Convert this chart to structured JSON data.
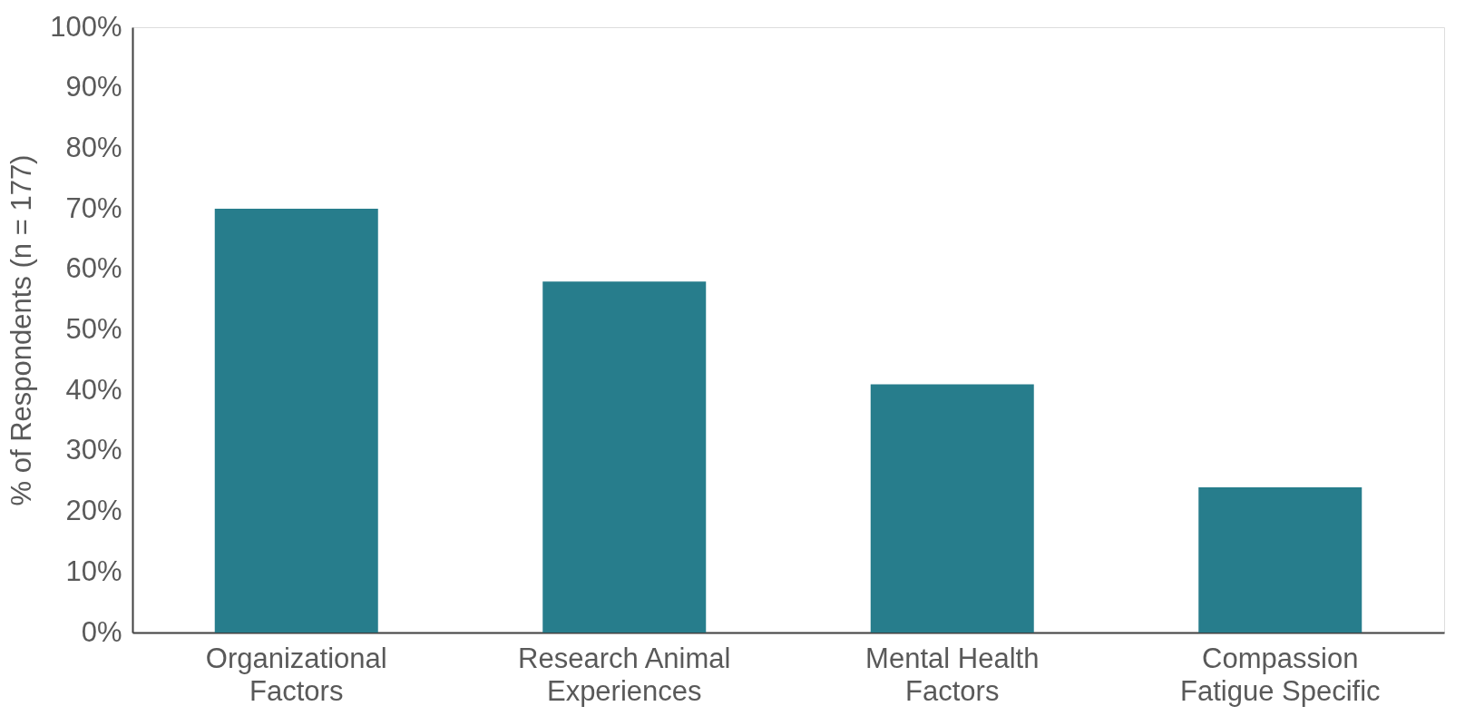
{
  "chart_data": {
    "type": "bar",
    "ylabel": "% of Respondents (n = 177)",
    "categories": [
      "Organizational\nFactors",
      "Research Animal\nExperiences",
      "Mental Health\nFactors",
      "Compassion\nFatigue Specific"
    ],
    "values": [
      70,
      58,
      41,
      24
    ],
    "color": "#277d8c",
    "ylim": [
      0,
      100
    ],
    "yticks": [
      {
        "value": 0,
        "label": "0%"
      },
      {
        "value": 10,
        "label": "10%"
      },
      {
        "value": 20,
        "label": "20%"
      },
      {
        "value": 30,
        "label": "30%"
      },
      {
        "value": 40,
        "label": "40%"
      },
      {
        "value": 50,
        "label": "50%"
      },
      {
        "value": 60,
        "label": "60%"
      },
      {
        "value": 70,
        "label": "70%"
      },
      {
        "value": 80,
        "label": "80%"
      },
      {
        "value": 90,
        "label": "90%"
      },
      {
        "value": 100,
        "label": "100%"
      }
    ],
    "grid": false
  }
}
